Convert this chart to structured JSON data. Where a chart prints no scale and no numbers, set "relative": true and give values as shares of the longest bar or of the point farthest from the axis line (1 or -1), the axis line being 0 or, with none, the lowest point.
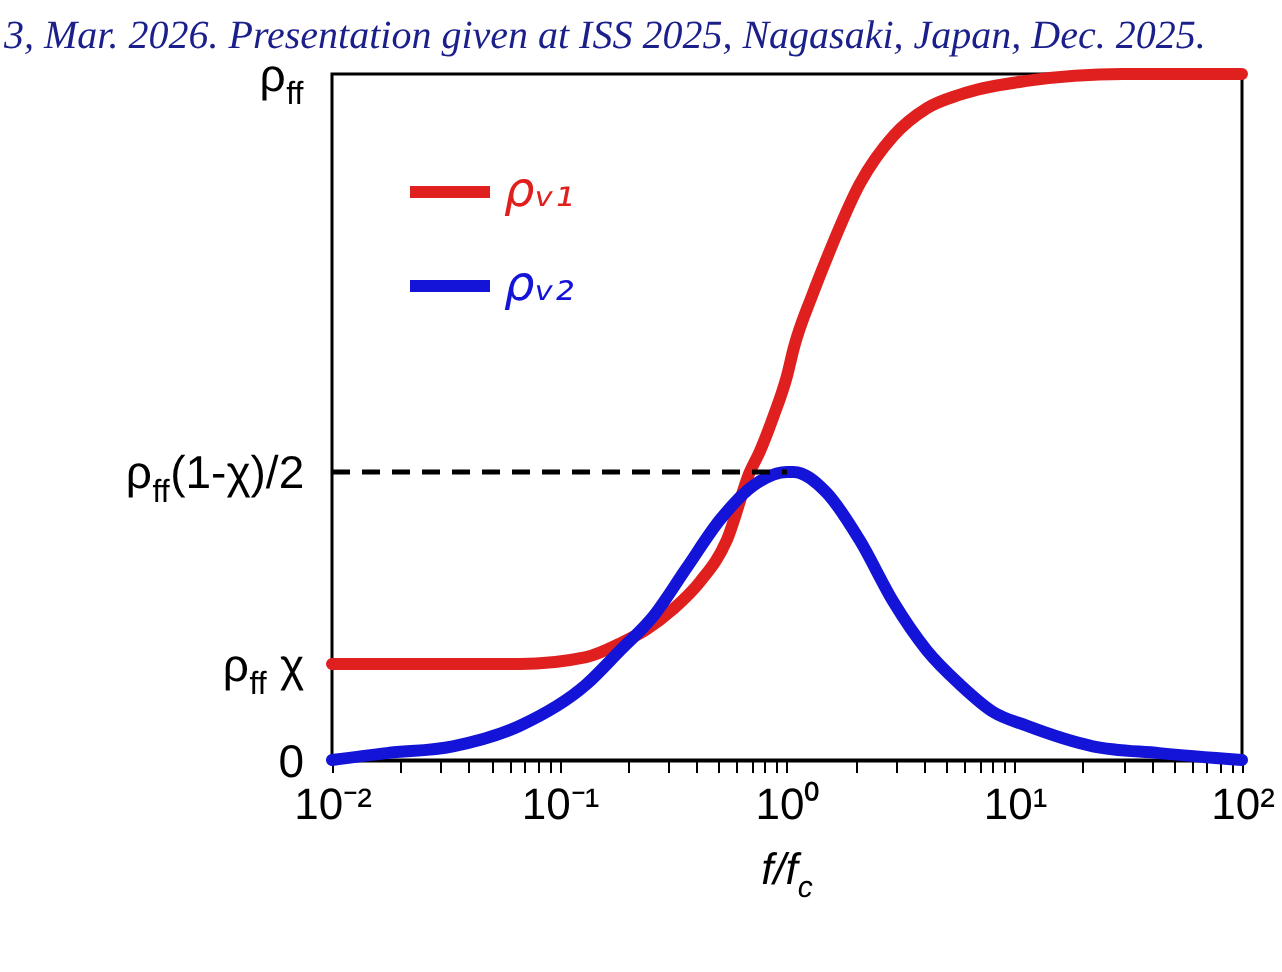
{
  "chart_data": {
    "type": "line",
    "relative": true,
    "annotations": [
      "3, Mar. 2026. Presentation given at ISS 2025, Nagasaki, Japan, Dec. 2025.",
      "ρ$_{ff}$",
      "ρ$_{ff}$(1-χ)/2",
      "ρ$_{ff}$ χ",
      "0"
    ],
    "xlabel": "f/f$_{c}$",
    "log": "x",
    "xlim": [
      0.01,
      100
    ],
    "xticks": [
      {
        "value": 0.01,
        "label": "10⁻²"
      },
      {
        "value": 0.02,
        "label": null
      },
      {
        "value": 0.03,
        "label": null
      },
      {
        "value": 0.04,
        "label": null
      },
      {
        "value": 0.05,
        "label": null
      },
      {
        "value": 0.06,
        "label": null
      },
      {
        "value": 0.07,
        "label": null
      },
      {
        "value": 0.08,
        "label": null
      },
      {
        "value": 0.09,
        "label": null
      },
      {
        "value": 0.1,
        "label": "10⁻¹"
      },
      {
        "value": 0.2,
        "label": null
      },
      {
        "value": 0.3,
        "label": null
      },
      {
        "value": 0.4,
        "label": null
      },
      {
        "value": 0.5,
        "label": null
      },
      {
        "value": 0.6,
        "label": null
      },
      {
        "value": 0.7,
        "label": null
      },
      {
        "value": 0.8,
        "label": null
      },
      {
        "value": 0.9,
        "label": null
      },
      {
        "value": 1,
        "label": "10⁰"
      },
      {
        "value": 2,
        "label": null
      },
      {
        "value": 3,
        "label": null
      },
      {
        "value": 4,
        "label": null
      },
      {
        "value": 5,
        "label": null
      },
      {
        "value": 6,
        "label": null
      },
      {
        "value": 7,
        "label": null
      },
      {
        "value": 8,
        "label": null
      },
      {
        "value": 9,
        "label": null
      },
      {
        "value": 10,
        "label": "10¹"
      },
      {
        "value": 20,
        "label": null
      },
      {
        "value": 30,
        "label": null
      },
      {
        "value": 40,
        "label": null
      },
      {
        "value": 50,
        "label": null
      },
      {
        "value": 60,
        "label": null
      },
      {
        "value": 70,
        "label": null
      },
      {
        "value": 80,
        "label": null
      },
      {
        "value": 90,
        "label": null
      },
      {
        "value": 100,
        "label": "10²"
      }
    ],
    "legend": "top left",
    "series": [
      {
        "name": "ρᵥ₁",
        "color": "#e0201e",
        "x": [
          0.01,
          0.0174,
          0.034,
          0.067,
          0.131,
          0.185,
          0.24,
          0.316,
          0.415,
          0.543,
          0.687,
          0.76,
          0.87,
          1.0,
          1.07,
          1.3,
          1.49,
          2.09,
          2.94,
          4.11,
          5.76,
          11.3,
          30,
          100
        ],
        "values": [
          0.14,
          0.14,
          0.14,
          0.14,
          0.15,
          0.17,
          0.19,
          0.22,
          0.26,
          0.32,
          0.42,
          0.45,
          0.5,
          0.56,
          0.6,
          0.68,
          0.73,
          0.84,
          0.91,
          0.95,
          0.97,
          0.99,
          1.0,
          1.0
        ]
      },
      {
        "name": "ρᵥ₂",
        "color": "#1414d8",
        "x": [
          0.01,
          0.0174,
          0.034,
          0.067,
          0.131,
          0.185,
          0.259,
          0.362,
          0.507,
          0.711,
          1.0,
          1.07,
          1.49,
          2.09,
          2.94,
          4.11,
          5.76,
          8.06,
          11.3,
          22.1,
          43.3,
          100
        ],
        "values": [
          0.0,
          0.01,
          0.02,
          0.05,
          0.11,
          0.16,
          0.21,
          0.28,
          0.35,
          0.4,
          0.42,
          0.42,
          0.39,
          0.32,
          0.23,
          0.16,
          0.11,
          0.07,
          0.05,
          0.02,
          0.01,
          0.0
        ]
      },
      {
        "color": "#000000",
        "line_style": "dashed",
        "x": [
          0.01,
          1
        ],
        "values": [
          0.42,
          0.42
        ]
      }
    ]
  }
}
